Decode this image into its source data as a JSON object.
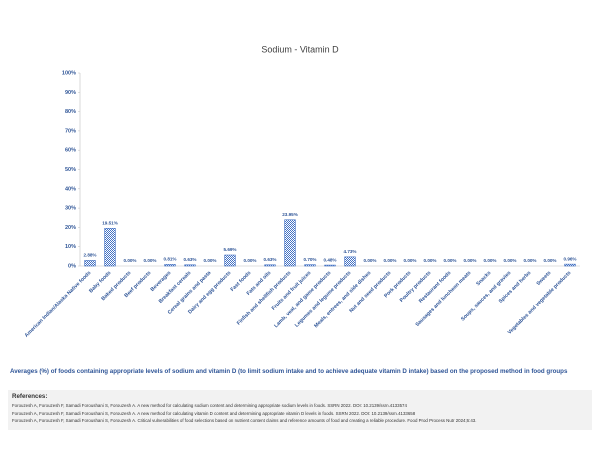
{
  "chart_data": {
    "type": "bar",
    "title": "Sodium - Vitamin D",
    "categories": [
      "American Indian/Alaska Native foods",
      "Baby foods",
      "Baked products",
      "Beef products",
      "Beverages",
      "Breakfast cereals",
      "Cereal grains and pasta",
      "Dairy and egg products",
      "Fast foods",
      "Fats and oils",
      "Finfish and shellfish products",
      "Fruits and fruit juices",
      "Lamb, veal, and game products",
      "Legumes and legume products",
      "Meals, entrees, and side dishes",
      "Nut and seed products",
      "Pork products",
      "Poultry products",
      "Restaurant foods",
      "Sausages and luncheon meats",
      "Snacks",
      "Soups, sauces, and gravies",
      "Spices and herbs",
      "Sweets",
      "Vegetables and vegetable products"
    ],
    "values": [
      2.88,
      19.51,
      0,
      0,
      0.81,
      0.63,
      0,
      5.69,
      0,
      0.63,
      23.95,
      0.7,
      0.48,
      4.73,
      0,
      0,
      0,
      0,
      0,
      0,
      0,
      0,
      0,
      0,
      0.96
    ],
    "value_labels": [
      "2.88%",
      "19.51%",
      "0.00%",
      "0.00%",
      "0.81%",
      "0.63%",
      "0.00%",
      "5.69%",
      "0.00%",
      "0.63%",
      "23.95%",
      "0.70%",
      "0.48%",
      "4.73%",
      "0.00%",
      "0.00%",
      "0.00%",
      "0.00%",
      "0.00%",
      "0.00%",
      "0.00%",
      "0.00%",
      "0.00%",
      "0.00%",
      "0.96%"
    ],
    "color": "#4472c4",
    "ylim": [
      0,
      100
    ],
    "yticks": [
      {
        "value": 0,
        "label": "0%"
      },
      {
        "value": 10,
        "label": "10%"
      },
      {
        "value": 20,
        "label": "20%"
      },
      {
        "value": 30,
        "label": "30%"
      },
      {
        "value": 40,
        "label": "40%"
      },
      {
        "value": 50,
        "label": "50%"
      },
      {
        "value": 60,
        "label": "60%"
      },
      {
        "value": 70,
        "label": "70%"
      },
      {
        "value": 80,
        "label": "80%"
      },
      {
        "value": 90,
        "label": "90%"
      },
      {
        "value": 100,
        "label": "100%"
      }
    ],
    "grid": false
  },
  "caption": "Averages (%) of foods containing appropriate levels of sodium and vitamin D (to limit sodium intake and to achieve adequate vitamin D intake) based on the proposed method in food groups",
  "references": {
    "title": "References:",
    "items": [
      "Forouzesh A, Forouzesh F, Samadi Foroushani S, Forouzesh A. A new method for calculating sodium content and determining appropriate sodium levels in foods. SSRN 2022. DOI: 10.2139/ssrn.4133574",
      "Forouzesh A, Forouzesh F, Samadi Foroushani S, Forouzesh A. A new method for calculating vitamin D content and determining appropriate vitamin D levels in foods. SSRN 2022. DOI: 10.2139/ssrn.4133658",
      "Forouzesh A, Forouzesh F, Samadi Foroushani S, Forouzesh A. Critical vulnerabilities of food selections based on nutrient content claims and reference amounts of food and creating a reliable procedure. Food Prod Process Nutr 2024;6:43."
    ]
  }
}
